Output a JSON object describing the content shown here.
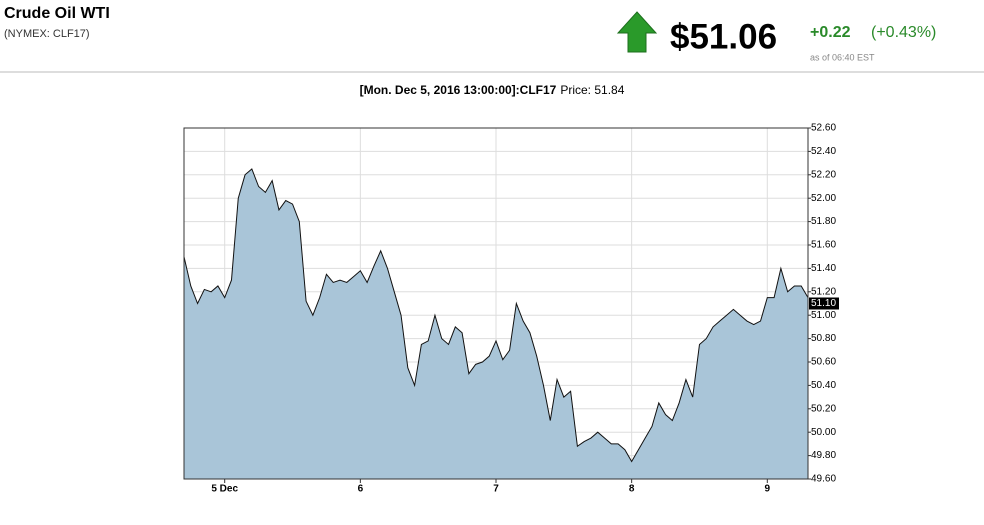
{
  "quote": {
    "title": "Crude Oil WTI",
    "symbol": "(NYMEX: CLF17)",
    "price": "$51.06",
    "change": "+0.22",
    "change_pct": "(+0.43%)",
    "as_of": "as of 06:40 EST"
  },
  "chart_data": {
    "type": "area",
    "title": "[Mon. Dec 5, 2016 13:00:00]:CLF17",
    "subtitle": "Price: 51.84",
    "x": [
      4.7,
      4.75,
      4.8,
      4.85,
      4.9,
      4.95,
      5.0,
      5.05,
      5.1,
      5.15,
      5.2,
      5.25,
      5.3,
      5.35,
      5.4,
      5.45,
      5.5,
      5.55,
      5.6,
      5.65,
      5.7,
      5.75,
      5.8,
      5.85,
      5.9,
      5.95,
      6.0,
      6.05,
      6.1,
      6.15,
      6.2,
      6.25,
      6.3,
      6.35,
      6.4,
      6.45,
      6.5,
      6.55,
      6.6,
      6.65,
      6.7,
      6.75,
      6.8,
      6.85,
      6.9,
      6.95,
      7.0,
      7.05,
      7.1,
      7.15,
      7.2,
      7.25,
      7.3,
      7.35,
      7.4,
      7.45,
      7.5,
      7.55,
      7.6,
      7.65,
      7.7,
      7.75,
      7.8,
      7.85,
      7.9,
      7.95,
      8.0,
      8.05,
      8.1,
      8.15,
      8.2,
      8.25,
      8.3,
      8.35,
      8.4,
      8.45,
      8.5,
      8.55,
      8.6,
      8.65,
      8.7,
      8.75,
      8.8,
      8.85,
      8.9,
      8.95,
      9.0,
      9.05,
      9.1,
      9.15,
      9.2,
      9.25,
      9.3
    ],
    "series": [
      {
        "name": "CLF17",
        "color": "#a9c5d8",
        "values": [
          51.5,
          51.25,
          51.1,
          51.22,
          51.2,
          51.25,
          51.15,
          51.3,
          52.0,
          52.2,
          52.25,
          52.1,
          52.05,
          52.15,
          51.9,
          51.98,
          51.95,
          51.8,
          51.12,
          51.0,
          51.15,
          51.35,
          51.28,
          51.3,
          51.28,
          51.33,
          51.38,
          51.28,
          51.42,
          51.55,
          51.4,
          51.2,
          51.0,
          50.55,
          50.4,
          50.75,
          50.78,
          51.0,
          50.8,
          50.75,
          50.9,
          50.85,
          50.5,
          50.58,
          50.6,
          50.65,
          50.78,
          50.62,
          50.7,
          51.1,
          50.95,
          50.85,
          50.65,
          50.4,
          50.1,
          50.45,
          50.3,
          50.35,
          49.88,
          49.92,
          49.95,
          50.0,
          49.95,
          49.9,
          49.9,
          49.85,
          49.75,
          49.85,
          49.95,
          50.05,
          50.25,
          50.15,
          50.1,
          50.25,
          50.45,
          50.3,
          50.75,
          50.8,
          50.9,
          50.95,
          51.0,
          51.05,
          51.0,
          50.95,
          50.92,
          50.95,
          51.15,
          51.15,
          51.4,
          51.2,
          51.25,
          51.25,
          51.15
        ]
      }
    ],
    "last_price": {
      "value": 51.1,
      "label": "51.10"
    },
    "xlim": [
      4.7,
      9.3
    ],
    "xticks": [
      {
        "value": 5,
        "label": "5 Dec"
      },
      6,
      7,
      8,
      9
    ],
    "ylim": [
      49.6,
      52.6
    ],
    "yticks": [
      {
        "value": 49.6,
        "label": "49.60"
      },
      {
        "value": 49.8,
        "label": "49.80"
      },
      {
        "value": 50,
        "label": "50.00"
      },
      {
        "value": 50.2,
        "label": "50.20"
      },
      {
        "value": 50.4,
        "label": "50.40"
      },
      {
        "value": 50.6,
        "label": "50.60"
      },
      {
        "value": 50.8,
        "label": "50.80"
      },
      {
        "value": 51,
        "label": "51.00"
      },
      {
        "value": 51.2,
        "label": "51.20"
      },
      {
        "value": 51.4,
        "label": "51.40"
      },
      {
        "value": 51.6,
        "label": "51.60"
      },
      {
        "value": 51.8,
        "label": "51.80"
      },
      {
        "value": 52,
        "label": "52.00"
      },
      {
        "value": 52.2,
        "label": "52.20"
      },
      {
        "value": 52.4,
        "label": "52.40"
      },
      {
        "value": 52.6,
        "label": "52.60"
      }
    ],
    "grid": true
  }
}
